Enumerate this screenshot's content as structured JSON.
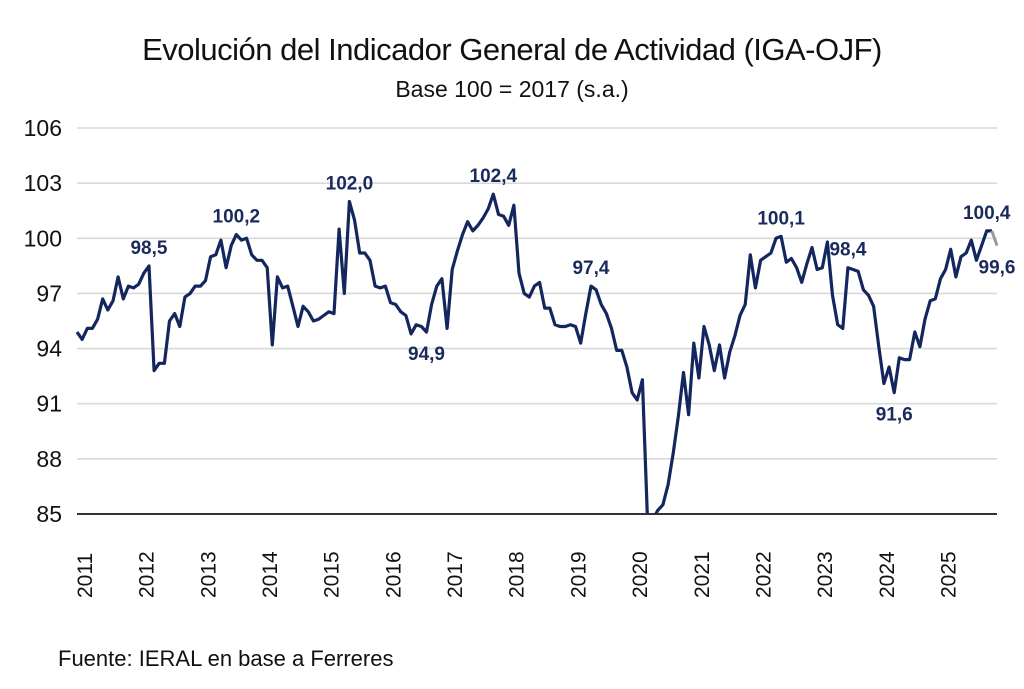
{
  "chart_data": {
    "type": "line",
    "title": "Evolución del Indicador General de Actividad (IGA-OJF)",
    "subtitle": "Base 100 = 2017 (s.a.)",
    "xlabel": "",
    "ylabel": "",
    "ylim": [
      85,
      106
    ],
    "yticks": [
      "106",
      "103",
      "100",
      "97",
      "94",
      "91",
      "88",
      "85"
    ],
    "ytick_values": [
      106,
      103,
      100,
      97,
      94,
      91,
      88,
      85
    ],
    "xticks": [
      "2011",
      "2012",
      "2013",
      "2014",
      "2015",
      "2016",
      "2017",
      "2018",
      "2019",
      "2020",
      "2021",
      "2022",
      "2023",
      "2024",
      "2025"
    ],
    "x_start": "2011-01",
    "frequency": "monthly",
    "grid": true,
    "legend": "none",
    "series": [
      {
        "name": "IGA-OJF",
        "color": "#14265e",
        "last_segment_color": "#9a9a9a",
        "values": [
          94.9,
          94.5,
          95.1,
          95.1,
          95.6,
          96.7,
          96.1,
          96.6,
          97.9,
          96.7,
          97.4,
          97.3,
          97.5,
          98.1,
          98.5,
          92.8,
          93.2,
          93.2,
          95.5,
          95.9,
          95.2,
          96.8,
          97.0,
          97.4,
          97.4,
          97.7,
          99.0,
          99.1,
          99.9,
          98.4,
          99.6,
          100.2,
          99.9,
          100.0,
          99.1,
          98.8,
          98.8,
          98.4,
          94.2,
          97.9,
          97.3,
          97.4,
          96.3,
          95.2,
          96.3,
          96.0,
          95.5,
          95.6,
          95.8,
          96.0,
          95.9,
          100.5,
          97.0,
          102.0,
          101.0,
          99.2,
          99.2,
          98.8,
          97.4,
          97.3,
          97.4,
          96.5,
          96.4,
          96.0,
          95.8,
          94.8,
          95.3,
          95.2,
          94.9,
          96.4,
          97.4,
          97.8,
          95.1,
          98.3,
          99.3,
          100.2,
          100.9,
          100.4,
          100.7,
          101.1,
          101.6,
          102.4,
          101.3,
          101.2,
          100.7,
          101.8,
          98.1,
          97.0,
          96.8,
          97.4,
          97.6,
          96.2,
          96.2,
          95.3,
          95.2,
          95.2,
          95.3,
          95.2,
          94.3,
          95.9,
          97.4,
          97.2,
          96.4,
          95.9,
          95.1,
          93.9,
          93.9,
          93.0,
          91.6,
          91.2,
          92.3,
          84.5,
          84.5,
          85.2,
          85.5,
          86.6,
          88.3,
          90.3,
          92.7,
          90.4,
          94.3,
          92.4,
          95.2,
          94.2,
          92.8,
          94.2,
          92.4,
          93.8,
          94.7,
          95.8,
          96.4,
          99.1,
          97.3,
          98.8,
          99.0,
          99.2,
          100.0,
          100.1,
          98.7,
          98.9,
          98.4,
          97.6,
          98.6,
          99.5,
          98.3,
          98.4,
          99.8,
          96.9,
          95.3,
          95.1,
          98.4,
          98.3,
          98.2,
          97.2,
          96.9,
          96.3,
          94.1,
          92.1,
          93.0,
          91.6,
          93.5,
          93.4,
          93.4,
          94.9,
          94.1,
          95.6,
          96.6,
          96.7,
          97.8,
          98.3,
          99.4,
          97.9,
          99.0,
          99.2,
          99.9,
          98.8,
          99.6,
          100.4,
          100.4,
          99.6
        ]
      }
    ],
    "annotations": [
      {
        "text": "98,5",
        "index": 14,
        "position": "above"
      },
      {
        "text": "100,2",
        "index": 31,
        "position": "above"
      },
      {
        "text": "102,0",
        "index": 53,
        "position": "above"
      },
      {
        "text": "94,9",
        "index": 68,
        "position": "below"
      },
      {
        "text": "102,4",
        "index": 81,
        "position": "above"
      },
      {
        "text": "97,4",
        "index": 100,
        "position": "above"
      },
      {
        "text": "100,1",
        "index": 137,
        "position": "above"
      },
      {
        "text": "98,4",
        "index": 150,
        "position": "above"
      },
      {
        "text": "91,6",
        "index": 159,
        "position": "below"
      },
      {
        "text": "100,4",
        "index": 177,
        "position": "above"
      },
      {
        "text": "99,6",
        "index": 179,
        "position": "below"
      }
    ],
    "source": "Fuente: IERAL en base a Ferreres"
  }
}
